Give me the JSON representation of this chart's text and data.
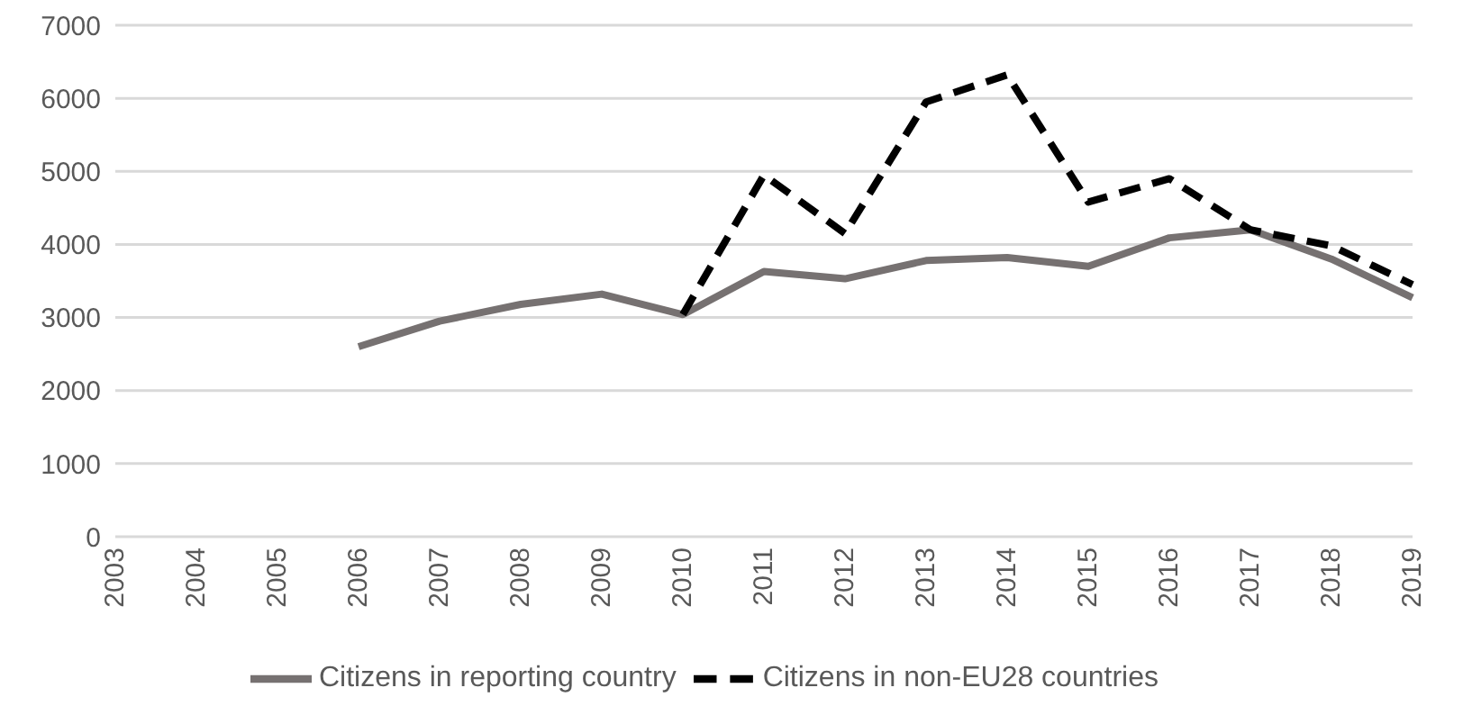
{
  "chart_data": {
    "type": "line",
    "categories": [
      "2003",
      "2004",
      "2005",
      "2006",
      "2007",
      "2008",
      "2009",
      "2010",
      "2011",
      "2012",
      "2013",
      "2014",
      "2015",
      "2016",
      "2017",
      "2018",
      "2019"
    ],
    "series": [
      {
        "name": "Citizens in reporting country",
        "color": "#767171",
        "line_style": "solid",
        "values": [
          null,
          null,
          null,
          2600,
          2950,
          3180,
          3320,
          3040,
          3630,
          3530,
          3780,
          3820,
          3700,
          4090,
          4200,
          3800,
          3270
        ]
      },
      {
        "name": "Citizens in non-EU28 countries",
        "color": "#000000",
        "line_style": "dashed",
        "values": [
          null,
          null,
          null,
          null,
          null,
          null,
          null,
          3040,
          4950,
          4150,
          5950,
          6320,
          4580,
          4900,
          4200,
          3980,
          3450
        ]
      }
    ],
    "ylim": [
      0,
      7000
    ],
    "yticks": [
      0,
      1000,
      2000,
      3000,
      4000,
      5000,
      6000,
      7000
    ],
    "grid": "y",
    "legend": "bottom",
    "marker": "none"
  }
}
